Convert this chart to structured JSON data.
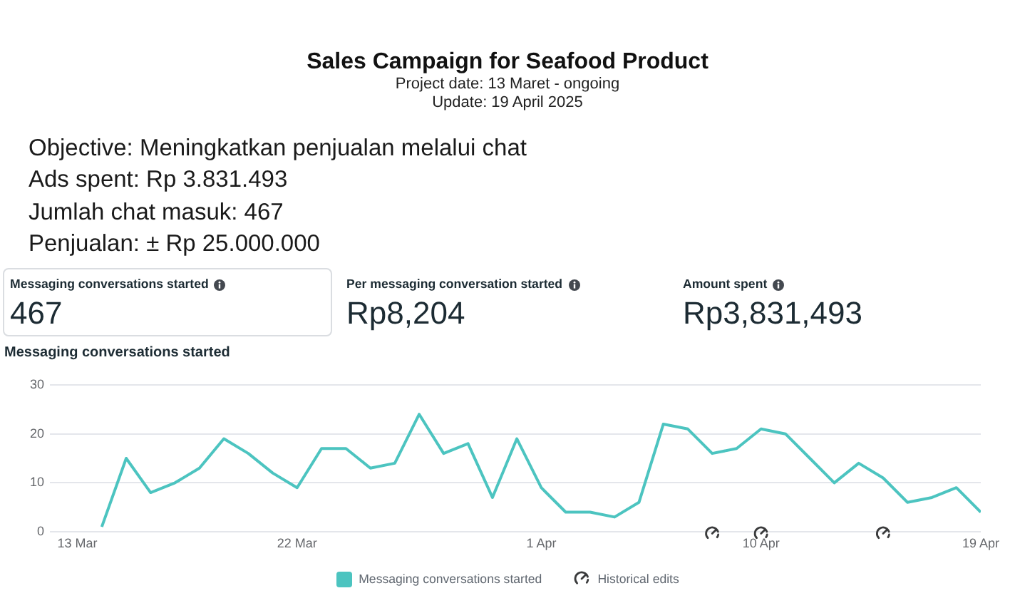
{
  "chart_data": {
    "type": "line",
    "title": "Sales Campaign for Seafood Product",
    "subtitle": "Project date: 13 Maret - ongoing",
    "annotations": [
      "Update: 19 April 2025",
      "Objective: Meningkatkan penjualan melalui chat",
      "Ads spent: Rp 3.831.493",
      "Jumlah chat masuk: 467",
      "Penjualan: ± Rp 25.000.000",
      "Messaging conversations started",
      "467",
      "Per messaging conversation started",
      "Rp8,204",
      "Amount spent",
      "Rp3,831,493",
      "Messaging conversations started"
    ],
    "x": [
      "2025-03-14",
      "2025-03-15",
      "2025-03-16",
      "2025-03-17",
      "2025-03-18",
      "2025-03-19",
      "2025-03-20",
      "2025-03-21",
      "2025-03-22",
      "2025-03-23",
      "2025-03-24",
      "2025-03-25",
      "2025-03-26",
      "2025-03-27",
      "2025-03-28",
      "2025-03-29",
      "2025-03-30",
      "2025-03-31",
      "2025-04-01",
      "2025-04-02",
      "2025-04-03",
      "2025-04-04",
      "2025-04-05",
      "2025-04-06",
      "2025-04-07",
      "2025-04-08",
      "2025-04-09",
      "2025-04-10",
      "2025-04-11",
      "2025-04-12",
      "2025-04-13",
      "2025-04-14",
      "2025-04-15",
      "2025-04-16",
      "2025-04-17",
      "2025-04-18",
      "2025-04-19"
    ],
    "series": [
      {
        "name": "Messaging conversations started",
        "color": "#4cc4c0",
        "values": [
          1,
          15,
          8,
          10,
          13,
          19,
          16,
          12,
          9,
          17,
          17,
          13,
          14,
          24,
          16,
          18,
          7,
          19,
          9,
          4,
          4,
          3,
          6,
          22,
          21,
          16,
          17,
          21,
          20,
          15,
          10,
          14,
          11,
          6,
          7,
          9,
          4
        ]
      },
      {
        "name": "Historical edits",
        "type": "scatter",
        "color": "#3a3b3c",
        "x": [
          "2025-04-08",
          "2025-04-10",
          "2025-04-15"
        ],
        "values": [
          0,
          0,
          0
        ]
      }
    ],
    "xlim": [
      "2025-03-11T21:00",
      "2025-04-19"
    ],
    "xticks": [
      {
        "value": "2025-03-13",
        "label": "13 Mar"
      },
      {
        "value": "2025-03-22",
        "label": "22 Mar"
      },
      {
        "value": "2025-04-01",
        "label": "1 Apr"
      },
      {
        "value": "2025-04-10",
        "label": "10 Apr"
      },
      {
        "value": "2025-04-19",
        "label": "19 Apr"
      }
    ],
    "ylim": [
      0,
      30
    ],
    "yticks": [
      0,
      10,
      20,
      30
    ],
    "grid": "y",
    "legend": "bottom"
  }
}
